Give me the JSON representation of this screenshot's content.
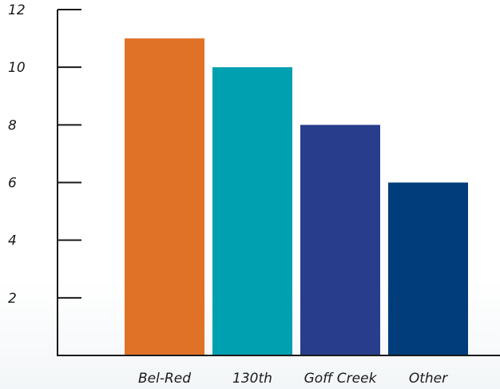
{
  "chart_data": {
    "type": "bar",
    "title": "",
    "xlabel": "",
    "ylabel": "",
    "categories": [
      "Bel-Red",
      "130th",
      "Goff Creek",
      "Other"
    ],
    "values": [
      11,
      10,
      8,
      6
    ],
    "colors": [
      "#e07228",
      "#00a0b0",
      "#283e8c",
      "#003d7a"
    ],
    "ylim": [
      0,
      12
    ],
    "yticks": [
      2,
      4,
      6,
      8,
      10,
      12
    ],
    "ytick_labels": [
      "2",
      "4",
      "6",
      "8",
      "10",
      "12"
    ],
    "grid": false,
    "legend": "none",
    "axis_color": "#1a1a1a"
  }
}
